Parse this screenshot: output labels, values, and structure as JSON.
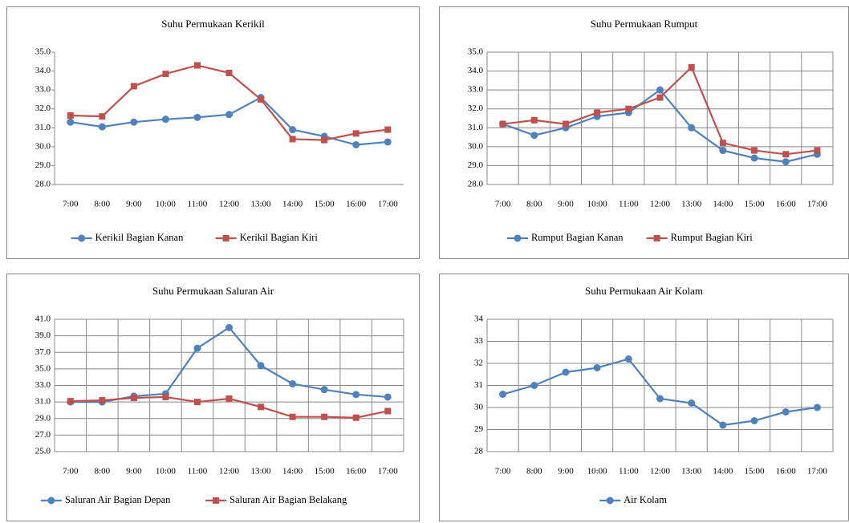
{
  "chart_data": [
    {
      "type": "line",
      "title": "Suhu Permukaan Kerikil",
      "grid": false,
      "categories": [
        "7:00",
        "8:00",
        "9:00",
        "10:00",
        "11:00",
        "12:00",
        "13:00",
        "14:00",
        "15:00",
        "16:00",
        "17:00"
      ],
      "series": [
        {
          "name": "Kerikil Bagian Kanan",
          "color": "#4f81bd",
          "marker": "circle",
          "values": [
            31.3,
            31.05,
            31.3,
            31.45,
            31.55,
            31.7,
            32.6,
            30.9,
            30.55,
            30.1,
            30.25
          ]
        },
        {
          "name": "Kerikil Bagian Kiri",
          "color": "#c0504d",
          "marker": "square",
          "values": [
            31.65,
            31.6,
            33.2,
            33.85,
            34.3,
            33.9,
            32.5,
            30.4,
            30.35,
            30.7,
            30.9
          ]
        }
      ],
      "ylim": [
        28,
        35
      ],
      "yticks": [
        {
          "value": 28,
          "label": "28.0"
        },
        {
          "value": 29,
          "label": "29.0"
        },
        {
          "value": 30,
          "label": "30.0"
        },
        {
          "value": 31,
          "label": "31.0"
        },
        {
          "value": 32,
          "label": "32.0"
        },
        {
          "value": 33,
          "label": "33.0"
        },
        {
          "value": 34,
          "label": "34.0"
        },
        {
          "value": 35,
          "label": "35.0"
        }
      ]
    },
    {
      "type": "line",
      "title": "Suhu Permukaan Rumput",
      "grid": true,
      "categories": [
        "7:00",
        "8:00",
        "9:00",
        "10:00",
        "11:00",
        "12:00",
        "13:00",
        "14:00",
        "15:00",
        "16:00",
        "17:00"
      ],
      "series": [
        {
          "name": "Rumput Bagian Kanan",
          "color": "#4f81bd",
          "marker": "circle",
          "values": [
            31.2,
            30.6,
            31.0,
            31.6,
            31.8,
            33.0,
            31.0,
            29.8,
            29.4,
            29.2,
            29.6
          ]
        },
        {
          "name": "Rumput Bagian Kiri",
          "color": "#c0504d",
          "marker": "square",
          "values": [
            31.2,
            31.4,
            31.2,
            31.8,
            32.0,
            32.6,
            34.2,
            30.2,
            29.8,
            29.6,
            29.8
          ]
        }
      ],
      "ylim": [
        28,
        35
      ],
      "yticks": [
        {
          "value": 28,
          "label": "28.0"
        },
        {
          "value": 29,
          "label": "29.0"
        },
        {
          "value": 30,
          "label": "30.0"
        },
        {
          "value": 31,
          "label": "31.0"
        },
        {
          "value": 32,
          "label": "32.0"
        },
        {
          "value": 33,
          "label": "33.0"
        },
        {
          "value": 34,
          "label": "34.0"
        },
        {
          "value": 35,
          "label": "35.0"
        }
      ]
    },
    {
      "type": "line",
      "title": "Suhu Permukaan Saluran Air",
      "grid": true,
      "categories": [
        "7:00",
        "8:00",
        "9:00",
        "10:00",
        "11:00",
        "12:00",
        "13:00",
        "14:00",
        "15:00",
        "16:00",
        "17:00"
      ],
      "series": [
        {
          "name": "Saluran Air Bagian Depan",
          "color": "#4f81bd",
          "marker": "circle",
          "values": [
            31.0,
            31.0,
            31.7,
            32.0,
            37.5,
            40.0,
            35.4,
            33.2,
            32.5,
            31.9,
            31.6
          ]
        },
        {
          "name": "Saluran Air Bagian Belakang",
          "color": "#c0504d",
          "marker": "square",
          "values": [
            31.1,
            31.2,
            31.5,
            31.6,
            31.0,
            31.4,
            30.4,
            29.2,
            29.2,
            29.1,
            29.9
          ]
        }
      ],
      "ylim": [
        25,
        41
      ],
      "yticks": [
        {
          "value": 25,
          "label": "25.0"
        },
        {
          "value": 27,
          "label": "27.0"
        },
        {
          "value": 29,
          "label": "29.0"
        },
        {
          "value": 31,
          "label": "31.0"
        },
        {
          "value": 33,
          "label": "33.0"
        },
        {
          "value": 35,
          "label": "35.0"
        },
        {
          "value": 37,
          "label": "37.0"
        },
        {
          "value": 39,
          "label": "39.0"
        },
        {
          "value": 41,
          "label": "41.0"
        }
      ]
    },
    {
      "type": "line",
      "title": "Suhu Permukaan Air Kolam",
      "grid": true,
      "categories": [
        "7:00",
        "8:00",
        "9:00",
        "10:00",
        "11:00",
        "12:00",
        "13:00",
        "14:00",
        "15:00",
        "16:00",
        "17:00"
      ],
      "series": [
        {
          "name": "Air Kolam",
          "color": "#4f81bd",
          "marker": "circle",
          "values": [
            30.6,
            31.0,
            31.6,
            31.8,
            32.2,
            30.4,
            30.2,
            29.2,
            29.4,
            29.8,
            30.0
          ]
        }
      ],
      "ylim": [
        28,
        34
      ],
      "yticks": [
        28,
        29,
        30,
        31,
        32,
        33,
        34
      ]
    }
  ]
}
